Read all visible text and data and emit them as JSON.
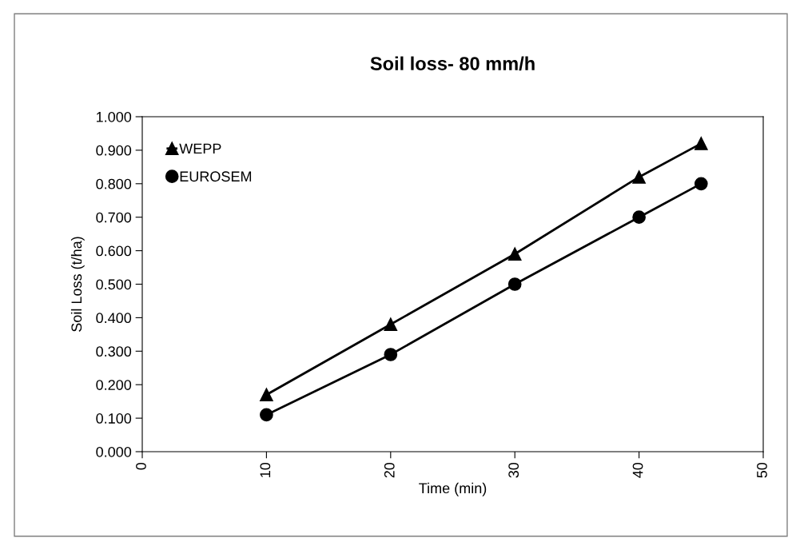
{
  "chart_data": {
    "type": "line",
    "title": "Soil loss- 80 mm/h",
    "xlabel": "Time (min)",
    "ylabel": "Soil Loss (t/ha)",
    "x": [
      10,
      20,
      30,
      40,
      45
    ],
    "series": [
      {
        "name": "WEPP",
        "color": "#000000",
        "marker": "triangle",
        "values": [
          0.17,
          0.38,
          0.59,
          0.82,
          0.92
        ]
      },
      {
        "name": "EUROSEM",
        "color": "#000000",
        "marker": "circle",
        "values": [
          0.11,
          0.29,
          0.5,
          0.7,
          0.8
        ]
      }
    ],
    "xlim": [
      0,
      50
    ],
    "xticks": [
      0,
      10,
      20,
      30,
      40,
      50
    ],
    "ylim": [
      0,
      1
    ],
    "yticks": [
      {
        "value": 0,
        "label": "0.000"
      },
      {
        "value": 0.1,
        "label": "0.100"
      },
      {
        "value": 0.2,
        "label": "0.200"
      },
      {
        "value": 0.3,
        "label": "0.300"
      },
      {
        "value": 0.4,
        "label": "0.400"
      },
      {
        "value": 0.5,
        "label": "0.500"
      },
      {
        "value": 0.6,
        "label": "0.600"
      },
      {
        "value": 0.7,
        "label": "0.700"
      },
      {
        "value": 0.8,
        "label": "0.800"
      },
      {
        "value": 0.9,
        "label": "0.900"
      },
      {
        "value": 1,
        "label": "1.000"
      }
    ],
    "grid": false,
    "legend": "top left",
    "line_style": "solid"
  }
}
